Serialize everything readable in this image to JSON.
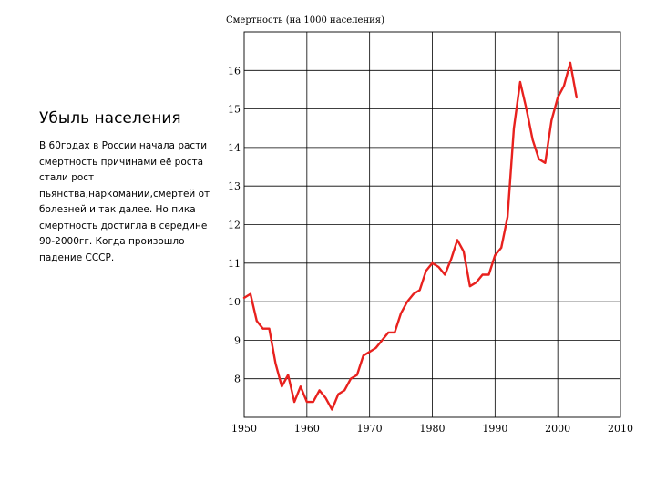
{
  "slide": {
    "heading": "Убыль населения",
    "body_lines": [
      "В 60годах в России начала расти",
      "смертность причинами её роста",
      "стали рост",
      "пьянства,наркомании,смертей от",
      "болезней и так далее. Но пика",
      "смертность достигла в середине",
      "90-2000гг. Когда произошло",
      "падение СССР."
    ]
  },
  "chart_data": {
    "type": "line",
    "title": "Смертность (на 1000 населения)",
    "xlabel": "",
    "ylabel": "",
    "xlim": [
      1950,
      2010
    ],
    "ylim": [
      7,
      17
    ],
    "x_ticks": [
      1950,
      1960,
      1970,
      1980,
      1990,
      2000,
      2010
    ],
    "y_ticks": [
      8,
      9,
      10,
      11,
      12,
      13,
      14,
      15,
      16
    ],
    "grid": true,
    "line_color": "#e8211e",
    "series": [
      {
        "x": [
          1950,
          1951,
          1952,
          1953,
          1954,
          1955,
          1956,
          1957,
          1958,
          1959,
          1960,
          1961,
          1962,
          1963,
          1964,
          1965,
          1966,
          1967,
          1968,
          1969,
          1970,
          1971,
          1972,
          1973,
          1974,
          1975,
          1976,
          1977,
          1978,
          1979,
          1980,
          1981,
          1982,
          1983,
          1984,
          1985,
          1986,
          1987,
          1988,
          1989,
          1990,
          1991,
          1992,
          1993,
          1994,
          1995,
          1996,
          1997,
          1998,
          1999,
          2000,
          2001,
          2002,
          2003
        ],
        "y": [
          10.1,
          10.2,
          9.5,
          9.3,
          9.3,
          8.4,
          7.8,
          8.1,
          7.4,
          7.8,
          7.4,
          7.4,
          7.7,
          7.5,
          7.2,
          7.6,
          7.7,
          8.0,
          8.1,
          8.6,
          8.7,
          8.8,
          9.0,
          9.2,
          9.2,
          9.7,
          10.0,
          10.2,
          10.3,
          10.8,
          11.0,
          10.9,
          10.7,
          11.1,
          11.6,
          11.3,
          10.4,
          10.5,
          10.7,
          10.7,
          11.2,
          11.4,
          12.2,
          14.5,
          15.7,
          15.0,
          14.2,
          13.7,
          13.6,
          14.7,
          15.3,
          15.6,
          16.2,
          15.3
        ]
      }
    ]
  }
}
